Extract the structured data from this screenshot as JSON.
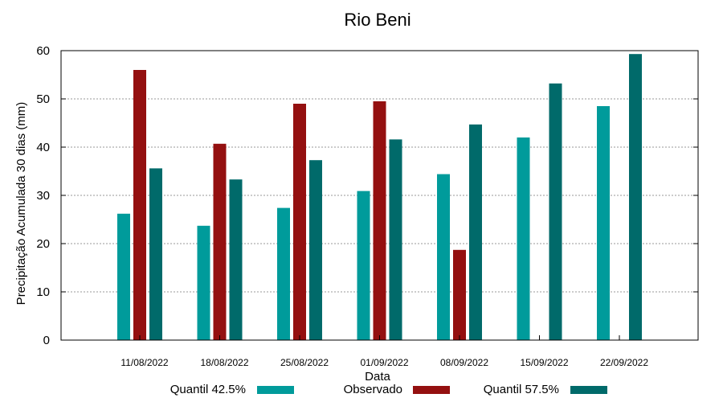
{
  "chart_data": {
    "type": "bar",
    "title": "Rio Beni",
    "xlabel": "Data",
    "ylabel": "Precipitação Acumulada 30 dias (mm)",
    "ylim": [
      0,
      60
    ],
    "yticks": [
      0,
      10,
      20,
      30,
      40,
      50,
      60
    ],
    "grid": true,
    "legend_position": "bottom",
    "categories": [
      "11/08/2022",
      "18/08/2022",
      "25/08/2022",
      "01/09/2022",
      "08/09/2022",
      "15/09/2022",
      "22/09/2022"
    ],
    "series": [
      {
        "name": "Quantil 42.5%",
        "color": "#009b9b",
        "values": [
          26.2,
          23.7,
          27.4,
          30.9,
          34.4,
          42.0,
          48.5
        ]
      },
      {
        "name": "Observado",
        "color": "#941010",
        "values": [
          56.0,
          40.7,
          49.0,
          49.5,
          18.7,
          null,
          null
        ]
      },
      {
        "name": "Quantil 57.5%",
        "color": "#006a6a",
        "values": [
          35.6,
          33.3,
          37.3,
          41.6,
          44.7,
          53.2,
          59.3
        ]
      }
    ]
  }
}
